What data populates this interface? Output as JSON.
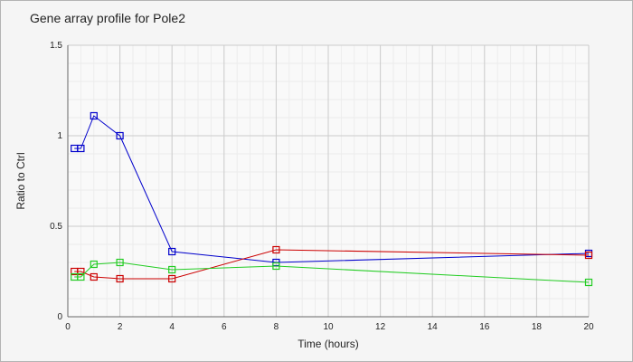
{
  "chart_data": {
    "type": "line",
    "title": "Gene array profile for Pole2",
    "xlabel": "Time (hours)",
    "ylabel": "Ratio to Ctrl",
    "xlim": [
      0,
      20
    ],
    "ylim": [
      0,
      1.5
    ],
    "x_ticks": [
      0,
      2,
      4,
      6,
      8,
      10,
      12,
      14,
      16,
      18,
      20
    ],
    "x_tick_labels": [
      "0",
      "2",
      "4",
      "6",
      "8",
      "10",
      "12",
      "14",
      "16",
      "18",
      "20"
    ],
    "y_ticks": [
      0,
      0.5,
      1,
      1.5
    ],
    "y_tick_labels": [
      "0",
      "0.5",
      "1",
      "1.5"
    ],
    "grid": true,
    "marker": "square",
    "series": [
      {
        "color": "#0000cc",
        "x": [
          0.25,
          0.5,
          1,
          2,
          4,
          8,
          20
        ],
        "y": [
          0.93,
          0.93,
          1.11,
          1.0,
          0.36,
          0.3,
          0.35
        ]
      },
      {
        "color": "#cc0000",
        "x": [
          0.25,
          0.5,
          1,
          2,
          4,
          8,
          20
        ],
        "y": [
          0.25,
          0.25,
          0.22,
          0.21,
          0.21,
          0.37,
          0.34
        ]
      },
      {
        "color": "#22cc22",
        "x": [
          0.25,
          0.5,
          1,
          2,
          4,
          8,
          20
        ],
        "y": [
          0.22,
          0.22,
          0.29,
          0.3,
          0.26,
          0.28,
          0.19
        ]
      }
    ]
  }
}
